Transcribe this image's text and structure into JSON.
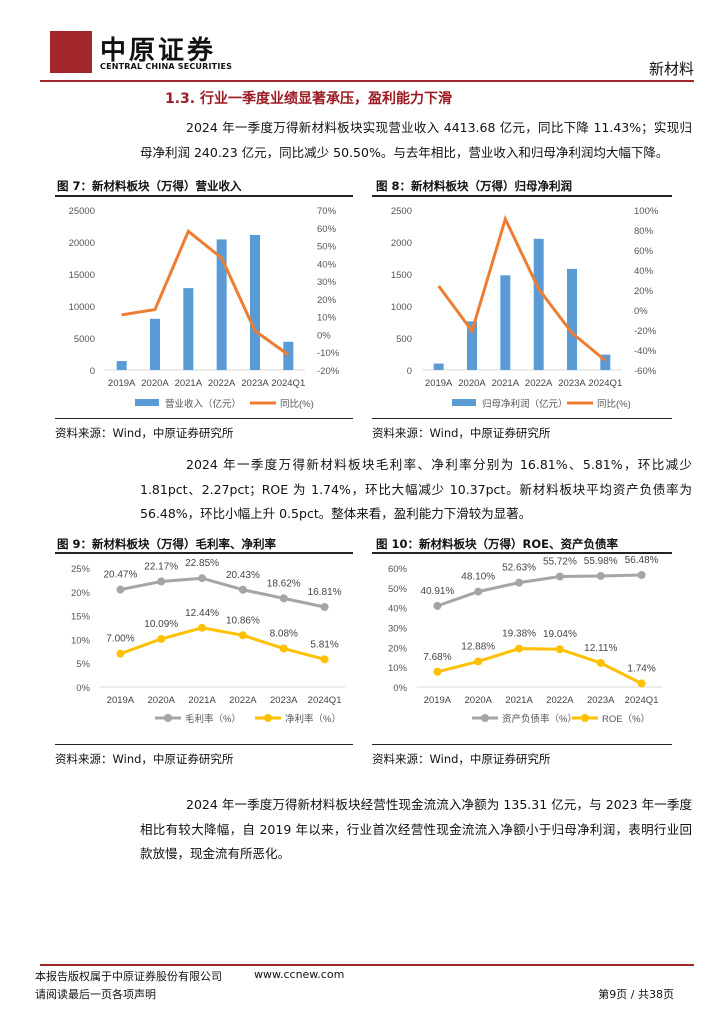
{
  "header": {
    "logo_cn": "中原证券",
    "logo_en": "CENTRAL CHINA SECURITIES",
    "category": "新材料",
    "accent": "#a3262a"
  },
  "section_title": "1.3. 行业一季度业绩显著承压，盈利能力下滑",
  "paragraphs": [
    "2024 年一季度万得新材料板块实现营业收入 4413.68 亿元，同比下降 11.43%；实现归母净利润 240.23 亿元，同比减少 50.50%。与去年相比，营业收入和归母净利润均大幅下降。",
    "2024 年一季度万得新材料板块毛利率、净利率分别为 16.81%、5.81%，环比减少 1.81pct、2.27pct；ROE 为 1.74%，环比大幅减少 10.37pct。新材料板块平均资产负债率为 56.48%，环比小幅上升 0.5pct。整体来看，盈利能力下滑较为显著。",
    "2024 年一季度万得新材料板块经营性现金流流入净额为 135.31 亿元，与 2023 年一季度相比有较大降幅，自 2019 年以来，行业首次经营性现金流流入净额小于归母净利润，表明行业回款放慢，现金流有所恶化。"
  ],
  "figures": [
    {
      "title": "图 7：新材料板块（万得）营业收入",
      "source": "资料来源：Wind，中原证券研究所"
    },
    {
      "title": "图 8：新材料板块（万得）归母净利润",
      "source": "资料来源：Wind，中原证券研究所"
    },
    {
      "title": "图 9：新材料板块（万得）毛利率、净利率",
      "source": "资料来源：Wind，中原证券研究所"
    },
    {
      "title": "图 10：新材料板块（万得）ROE、资产负债率",
      "source": "资料来源：Wind，中原证券研究所"
    }
  ],
  "chart_data": [
    {
      "type": "bar",
      "categories": [
        "2019A",
        "2020A",
        "2021A",
        "2022A",
        "2023A",
        "2024Q1"
      ],
      "series": [
        {
          "name": "营业收入（亿元）",
          "kind": "bar",
          "axis": "left",
          "color": "#5b9bd5",
          "values": [
            1400,
            8000,
            12800,
            20400,
            21100,
            4413.68
          ]
        },
        {
          "name": "同比(%)",
          "kind": "line",
          "axis": "right",
          "color": "#ed7d31",
          "values": [
            11,
            14,
            58,
            43,
            2,
            -11.43
          ]
        }
      ],
      "ylim": [
        0,
        25000
      ],
      "yticks": [
        "0",
        "5000",
        "10000",
        "15000",
        "20000",
        "25000"
      ],
      "y2lim": [
        -20,
        70
      ],
      "y2ticks": [
        "-20%",
        "-10%",
        "0%",
        "10%",
        "20%",
        "30%",
        "40%",
        "50%",
        "60%",
        "70%"
      ],
      "legend": "bottom"
    },
    {
      "type": "bar",
      "categories": [
        "2019A",
        "2020A",
        "2021A",
        "2022A",
        "2023A",
        "2024Q1"
      ],
      "series": [
        {
          "name": "归母净利润（亿元）",
          "kind": "bar",
          "axis": "left",
          "color": "#5b9bd5",
          "values": [
            100,
            760,
            1480,
            2050,
            1580,
            240.23
          ]
        },
        {
          "name": "同比(%)",
          "kind": "line",
          "axis": "right",
          "color": "#ed7d31",
          "values": [
            24,
            -21,
            91,
            21,
            -23,
            -50.5
          ]
        }
      ],
      "ylim": [
        0,
        2500
      ],
      "yticks": [
        "0",
        "500",
        "1000",
        "1500",
        "2000",
        "2500"
      ],
      "y2lim": [
        -60,
        100
      ],
      "y2ticks": [
        "-60%",
        "-40%",
        "-20%",
        "0%",
        "20%",
        "40%",
        "60%",
        "80%",
        "100%"
      ],
      "legend": "bottom"
    },
    {
      "type": "line",
      "categories": [
        "2019A",
        "2020A",
        "2021A",
        "2022A",
        "2023A",
        "2024Q1"
      ],
      "series": [
        {
          "name": "毛利率（%）",
          "color": "#a5a5a5",
          "values": [
            20.47,
            22.17,
            22.85,
            20.43,
            18.62,
            16.81
          ],
          "labels": [
            "20.47%",
            "22.17%",
            "22.85%",
            "20.43%",
            "18.62%",
            "16.81%"
          ]
        },
        {
          "name": "净利率（%）",
          "color": "#ffc000",
          "values": [
            7.0,
            10.09,
            12.44,
            10.86,
            8.08,
            5.81
          ],
          "labels": [
            "7.00%",
            "10.09%",
            "12.44%",
            "10.86%",
            "8.08%",
            "5.81%"
          ]
        }
      ],
      "ylim": [
        0,
        25
      ],
      "yticks": [
        "0%",
        "5%",
        "10%",
        "15%",
        "20%",
        "25%"
      ],
      "legend": "bottom"
    },
    {
      "type": "line",
      "categories": [
        "2019A",
        "2020A",
        "2021A",
        "2022A",
        "2023A",
        "2024Q1"
      ],
      "series": [
        {
          "name": "资产负债率（%）",
          "color": "#a5a5a5",
          "values": [
            40.91,
            48.1,
            52.63,
            55.72,
            55.98,
            56.48
          ],
          "labels": [
            "40.91%",
            "48.10%",
            "52.63%",
            "55.72%",
            "55.98%",
            "56.48%"
          ]
        },
        {
          "name": "ROE（%）",
          "color": "#ffc000",
          "values": [
            7.68,
            12.88,
            19.38,
            19.04,
            12.11,
            1.74
          ],
          "labels": [
            "7.68%",
            "12.88%",
            "19.38%",
            "19.04%",
            "12.11%",
            "1.74%"
          ]
        }
      ],
      "ylim": [
        0,
        60
      ],
      "yticks": [
        "0%",
        "10%",
        "20%",
        "30%",
        "40%",
        "50%",
        "60%"
      ],
      "legend": "bottom"
    }
  ],
  "footer": {
    "copyright": "本报告版权属于中原证券股份有限公司",
    "website": "www.ccnew.com",
    "disclaimer": "请阅读最后一页各项声明",
    "page": "第9页 / 共38页"
  }
}
